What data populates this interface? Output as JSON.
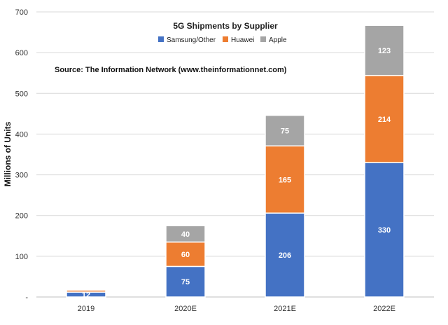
{
  "chart_data": {
    "type": "bar",
    "stacked": true,
    "title": "5G Shipments by Supplier",
    "source": "Source: The Information Network (www.theinformationnet.com)",
    "ylabel": "Millions of Units",
    "xlabel": "",
    "ylim": [
      0,
      700
    ],
    "yticks": [
      0,
      100,
      200,
      300,
      400,
      500,
      600,
      700
    ],
    "ytick_labels": [
      "-",
      "100",
      "200",
      "300",
      "400",
      "500",
      "600",
      "700"
    ],
    "categories": [
      "2019",
      "2020E",
      "2021E",
      "2022E"
    ],
    "series": [
      {
        "name": "Samsung/Other",
        "color": "#4472C4",
        "values": [
          12,
          75,
          206,
          330
        ],
        "labels": [
          "12",
          "75",
          "206",
          "330"
        ]
      },
      {
        "name": "Huawei",
        "color": "#ED7D31",
        "values": [
          5,
          60,
          165,
          214
        ],
        "labels": [
          "",
          "60",
          "165",
          "214"
        ]
      },
      {
        "name": "Apple",
        "color": "#A5A5A5",
        "values": [
          0,
          40,
          75,
          123
        ],
        "labels": [
          "",
          "40",
          "75",
          "123"
        ]
      }
    ],
    "legend_position": "top-center",
    "grid": true
  }
}
